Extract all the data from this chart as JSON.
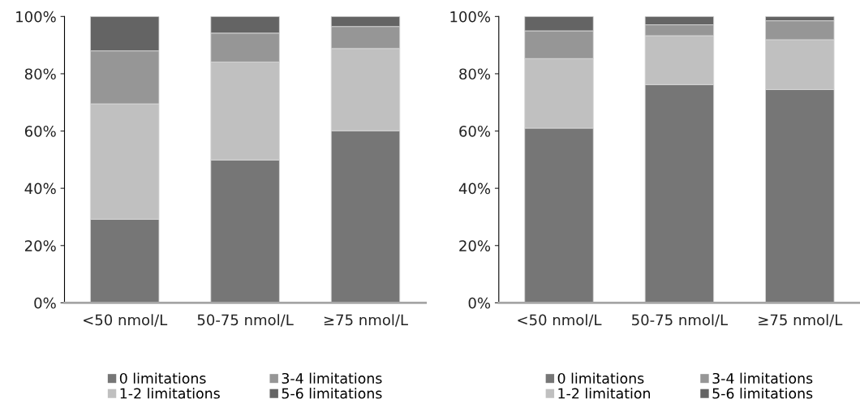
{
  "chart_data": [
    {
      "type": "bar",
      "stacked": true,
      "categories": [
        "<50 nmol/L",
        "50-75 nmol/L",
        "≥75 nmol/L"
      ],
      "ylim": [
        0,
        100
      ],
      "yticks": [
        {
          "value": 0,
          "label": "0%"
        },
        {
          "value": 20,
          "label": "20%"
        },
        {
          "value": 40,
          "label": "40%"
        },
        {
          "value": 60,
          "label": "60%"
        },
        {
          "value": 80,
          "label": "80%"
        },
        {
          "value": 100,
          "label": "100%"
        }
      ],
      "grid": false,
      "legend": "bottom",
      "series": [
        {
          "name": "0 limitations",
          "color": "#767676",
          "values": [
            29.2,
            49.9,
            60.1
          ]
        },
        {
          "name": "1-2 limitations",
          "color": "#c0c0c0",
          "values": [
            40.3,
            34.2,
            28.7
          ]
        },
        {
          "name": "3-4 limitations",
          "color": "#969696",
          "values": [
            18.5,
            10.1,
            7.7
          ]
        },
        {
          "name": "5-6 limitations",
          "color": "#646464",
          "values": [
            12.0,
            5.8,
            3.5
          ]
        }
      ]
    },
    {
      "type": "bar",
      "stacked": true,
      "categories": [
        "<50 nmol/L",
        "50-75 nmol/L",
        "≥75 nmol/L"
      ],
      "ylim": [
        0,
        100
      ],
      "yticks": [
        {
          "value": 0,
          "label": "0%"
        },
        {
          "value": 20,
          "label": "20%"
        },
        {
          "value": 40,
          "label": "40%"
        },
        {
          "value": 60,
          "label": "60%"
        },
        {
          "value": 80,
          "label": "80%"
        },
        {
          "value": 100,
          "label": "100%"
        }
      ],
      "grid": false,
      "legend": "bottom",
      "series": [
        {
          "name": "0 limitations",
          "color": "#767676",
          "values": [
            61.0,
            76.2,
            74.5
          ]
        },
        {
          "name": "1-2 limitation",
          "color": "#c0c0c0",
          "values": [
            24.3,
            17.1,
            17.4
          ]
        },
        {
          "name": "3-4 limitations",
          "color": "#969696",
          "values": [
            9.7,
            3.8,
            6.6
          ]
        },
        {
          "name": "5-6 limitations",
          "color": "#646464",
          "values": [
            5.0,
            2.9,
            1.5
          ]
        }
      ]
    }
  ]
}
